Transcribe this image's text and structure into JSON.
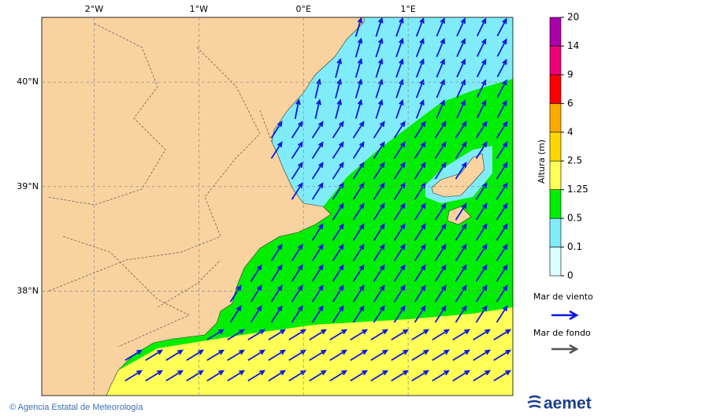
{
  "map": {
    "lonlim": [
      -2.5,
      2.0
    ],
    "latlim": [
      37.0,
      40.62
    ],
    "lon_ticks": [
      {
        "value": -2,
        "label": "2°W"
      },
      {
        "value": -1,
        "label": "1°W"
      },
      {
        "value": 0,
        "label": "0°E"
      },
      {
        "value": 1,
        "label": "1°E"
      }
    ],
    "lat_ticks": [
      {
        "value": 40,
        "label": "40°N"
      },
      {
        "value": 39,
        "label": "39°N"
      },
      {
        "value": 38,
        "label": "38°N"
      }
    ]
  },
  "colorbar": {
    "title": "Altura (m)",
    "levels": [
      0,
      0.1,
      0.5,
      1.25,
      2.5,
      4,
      6,
      9,
      14,
      20
    ],
    "colors": [
      "#dcffff",
      "#80ecfa",
      "#00ee00",
      "#ffff55",
      "#ffd700",
      "#ffaa00",
      "#ff0000",
      "#ee0077",
      "#aa00aa"
    ]
  },
  "legend": [
    {
      "label": "Mar de viento",
      "color": "#0a18e0"
    },
    {
      "label": "Mar de fondo",
      "color": "#555555"
    }
  ],
  "footer": {
    "copyright": "© Agencia Estatal de Meteorología",
    "logo": "aemet"
  }
}
